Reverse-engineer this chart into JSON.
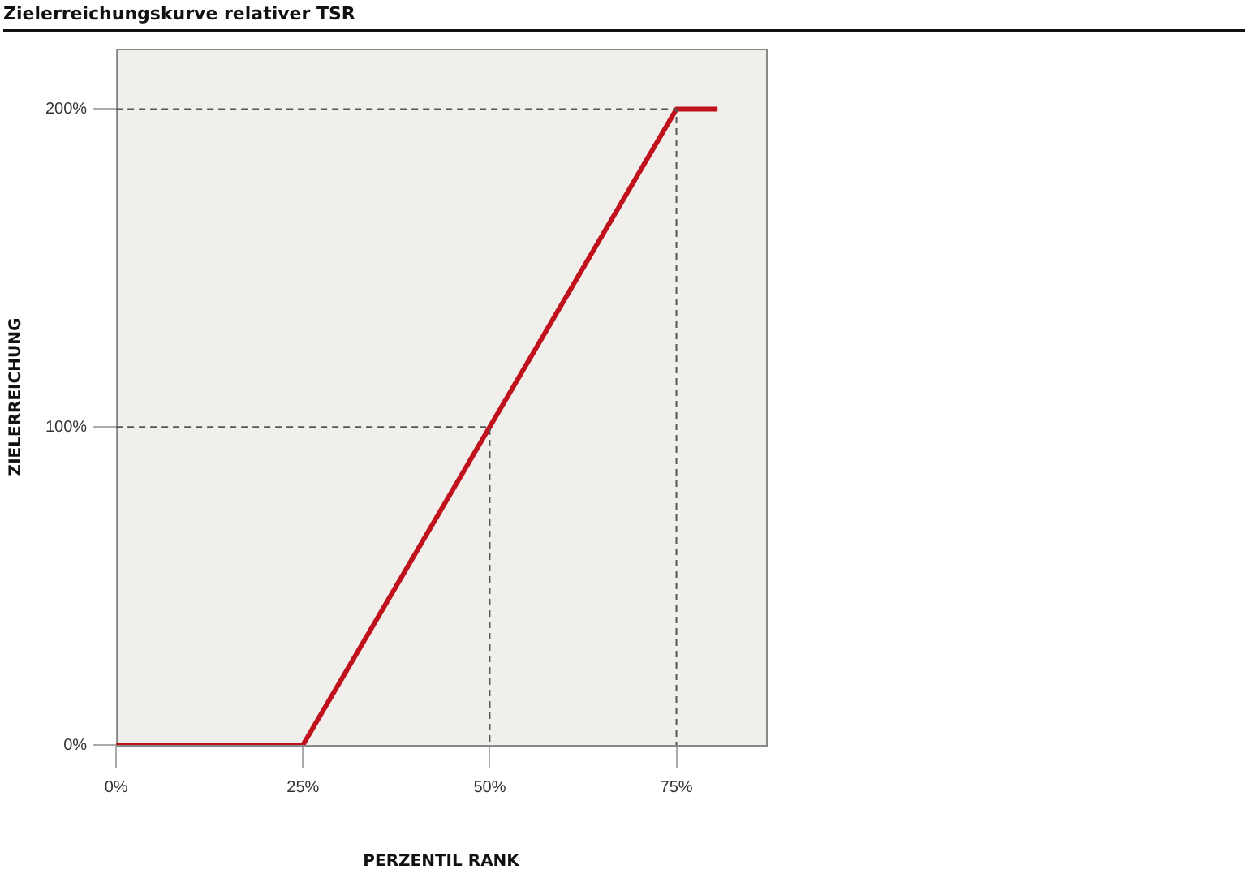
{
  "chart_data": {
    "type": "line",
    "title": "Zielerreichungskurve relativer TSR",
    "xlabel": "PERZENTIL RANK",
    "ylabel": "ZIELERREICHUNG",
    "xlim": [
      0,
      87
    ],
    "ylim": [
      0,
      219
    ],
    "xticks": [
      {
        "value": 0,
        "label": "0%"
      },
      {
        "value": 25,
        "label": "25%"
      },
      {
        "value": 50,
        "label": "50%"
      },
      {
        "value": 75,
        "label": "75%"
      }
    ],
    "yticks": [
      {
        "value": 0,
        "label": "0%"
      },
      {
        "value": 100,
        "label": "100%"
      },
      {
        "value": 200,
        "label": "200%"
      }
    ],
    "grid": false,
    "legend": false,
    "marker": "none",
    "series": [
      {
        "color": "#555555",
        "line_style": "dashed",
        "x": [
          0,
          50,
          50
        ],
        "values": [
          100,
          100,
          0
        ]
      },
      {
        "color": "#555555",
        "line_style": "dashed",
        "x": [
          0,
          75,
          75
        ],
        "values": [
          200,
          200,
          0
        ]
      },
      {
        "color": "#c0121c",
        "line_style": "solid",
        "x": [
          0,
          25,
          75,
          80.5
        ],
        "values": [
          0,
          0,
          200,
          200
        ]
      }
    ]
  }
}
